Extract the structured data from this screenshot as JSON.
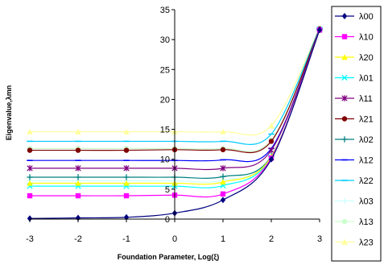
{
  "chart_data": {
    "type": "line",
    "xlabel": "Foundation Parameter,  Log(ξ)",
    "ylabel": "Eigenvalue,λmn",
    "xlim": [
      -3,
      3
    ],
    "ylim": [
      0,
      35
    ],
    "x_ticks": [
      "-3",
      "-2",
      "-1",
      "0",
      "1",
      "2",
      "3"
    ],
    "y_ticks": [
      "0",
      "5",
      "10",
      "15",
      "20",
      "25",
      "30",
      "35"
    ],
    "grid": false,
    "legend_position": "right",
    "x": [
      -3,
      -2,
      -1,
      0,
      1,
      2,
      3
    ],
    "series": [
      {
        "name": "λ00",
        "color": "#000080",
        "marker": "diamond",
        "values": [
          0.1,
          0.2,
          0.3,
          1.0,
          3.2,
          10.0,
          31.6
        ]
      },
      {
        "name": "λ10",
        "color": "#ff00ff",
        "marker": "square",
        "values": [
          3.9,
          3.9,
          3.9,
          4.0,
          4.2,
          10.2,
          31.6
        ]
      },
      {
        "name": "λ20",
        "color": "#ffff00",
        "marker": "triangle",
        "values": [
          6.0,
          6.0,
          6.0,
          6.0,
          6.2,
          10.4,
          31.6
        ]
      },
      {
        "name": "λ01",
        "color": "#00ffff",
        "marker": "x",
        "values": [
          5.5,
          5.5,
          5.5,
          5.5,
          5.6,
          10.3,
          31.7
        ]
      },
      {
        "name": "λ11",
        "color": "#800080",
        "marker": "star",
        "values": [
          8.5,
          8.5,
          8.5,
          8.5,
          8.5,
          11.5,
          31.7
        ]
      },
      {
        "name": "λ21",
        "color": "#800000",
        "marker": "circle",
        "values": [
          11.5,
          11.5,
          11.5,
          11.6,
          11.6,
          13.0,
          31.8
        ]
      },
      {
        "name": "λ02",
        "color": "#008080",
        "marker": "plus",
        "values": [
          7.0,
          7.0,
          7.0,
          7.0,
          7.1,
          10.5,
          31.7
        ]
      },
      {
        "name": "λ12",
        "color": "#0000ff",
        "marker": "dash",
        "values": [
          9.8,
          9.8,
          9.8,
          9.8,
          9.9,
          11.8,
          31.7
        ]
      },
      {
        "name": "λ22",
        "color": "#00ccff",
        "marker": "dash",
        "values": [
          13.0,
          13.0,
          13.0,
          13.0,
          13.0,
          14.2,
          31.9
        ]
      },
      {
        "name": "λ03",
        "color": "#ccffff",
        "marker": "plus",
        "values": [
          6.4,
          6.4,
          6.4,
          6.4,
          6.5,
          10.4,
          31.7
        ]
      },
      {
        "name": "λ13",
        "color": "#ccffcc",
        "marker": "circle",
        "values": [
          11.8,
          11.8,
          11.8,
          11.8,
          11.8,
          13.2,
          31.8
        ]
      },
      {
        "name": "λ23",
        "color": "#ffff99",
        "marker": "triangle",
        "values": [
          14.6,
          14.6,
          14.6,
          14.6,
          14.6,
          15.6,
          31.9
        ]
      }
    ]
  }
}
